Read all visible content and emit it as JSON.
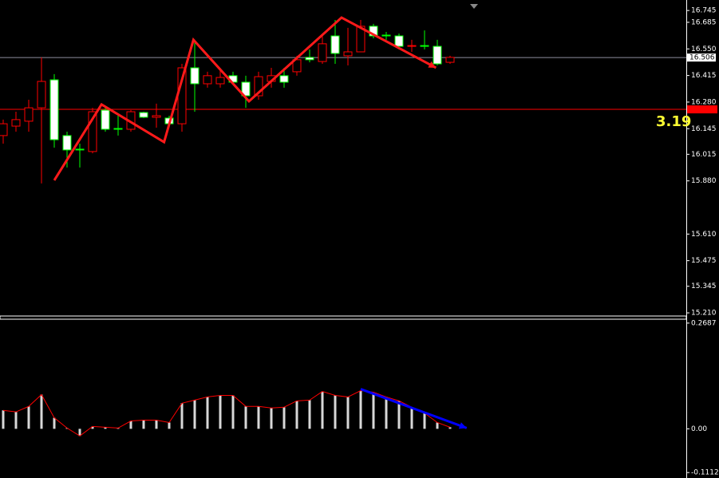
{
  "chart_data": [
    {
      "type": "candlestick",
      "open": [
        16.17,
        16.191,
        16.251,
        16.385,
        16.089,
        16.037,
        16.037,
        16.231,
        16.142,
        16.142,
        16.231,
        16.203,
        16.211,
        16.17,
        16.454,
        16.373,
        16.414,
        16.405,
        16.381,
        16.312,
        16.409,
        16.414,
        16.381,
        16.495,
        16.495,
        16.576,
        16.527,
        16.535,
        16.665,
        16.616,
        16.616,
        16.563,
        16.567,
        16.563,
        16.474,
        16.507
      ],
      "high": [
        16.191,
        16.231,
        16.292,
        16.507,
        16.422,
        16.13,
        16.069,
        16.251,
        16.251,
        16.211,
        16.239,
        16.231,
        16.272,
        16.211,
        16.474,
        16.596,
        16.434,
        16.454,
        16.434,
        16.414,
        16.434,
        16.454,
        16.454,
        16.515,
        16.547,
        16.616,
        16.697,
        16.657,
        16.697,
        16.677,
        16.636,
        16.628,
        16.596,
        16.644,
        16.596,
        16.515
      ],
      "low": [
        16.069,
        16.13,
        16.13,
        15.867,
        16.049,
        15.948,
        15.948,
        16.02,
        16.13,
        16.11,
        16.13,
        16.199,
        16.15,
        16.158,
        16.13,
        16.231,
        16.353,
        16.353,
        16.373,
        16.251,
        16.292,
        16.353,
        16.353,
        16.414,
        16.482,
        16.474,
        16.474,
        16.466,
        16.535,
        16.604,
        16.596,
        16.547,
        16.535,
        16.547,
        16.466,
        16.474
      ],
      "close": [
        16.11,
        16.158,
        16.183,
        16.251,
        16.393,
        16.11,
        16.041,
        16.029,
        16.239,
        16.146,
        16.142,
        16.227,
        16.203,
        16.199,
        16.17,
        16.454,
        16.373,
        16.373,
        16.414,
        16.381,
        16.312,
        16.385,
        16.414,
        16.434,
        16.507,
        16.486,
        16.616,
        16.515,
        16.535,
        16.665,
        16.62,
        16.616,
        16.563,
        16.567,
        16.563,
        16.482
      ],
      "ylim": [
        15.194,
        16.778
      ],
      "yticks": [
        16.685,
        {
          "value": 16.55,
          "label": "16.550"
        },
        16.415,
        {
          "value": 16.28,
          "label": "16.280"
        },
        16.145,
        16.015,
        {
          "value": 15.88,
          "label": "15.880"
        },
        16.745,
        {
          "value": 15.61,
          "label": "15.610"
        },
        15.475,
        15.345,
        {
          "value": 15.21,
          "label": "15.210"
        }
      ],
      "last_price": 16.506,
      "level_line": 16.243,
      "annotation": "3.19",
      "arrows": {
        "x": [
          4,
          7.7,
          12.6,
          14.9,
          19.25,
          26.5,
          33.9
        ],
        "y": [
          15.883,
          16.268,
          16.077,
          16.596,
          16.284,
          16.709,
          16.454
        ],
        "color": "#ff1a1a"
      }
    },
    {
      "type": "bar",
      "values": [
        0.047,
        0.043,
        0.057,
        0.087,
        0.028,
        0.002,
        -0.018,
        0.006,
        0.004,
        0.002,
        0.02,
        0.022,
        0.022,
        0.016,
        0.065,
        0.073,
        0.081,
        0.085,
        0.085,
        0.057,
        0.057,
        0.053,
        0.055,
        0.071,
        0.073,
        0.095,
        0.085,
        0.081,
        0.097,
        0.093,
        0.081,
        0.071,
        0.055,
        0.04,
        0.016,
        0.004
      ],
      "color": "#d8d8d8",
      "ylim": [
        -0.125,
        0.2786
      ],
      "yticks": [
        0.2687,
        {
          "value": 0,
          "label": "0.00"
        },
        -0.1112
      ],
      "arrows": {
        "x": [
          28,
          36.3
        ],
        "y": [
          0.101,
          0.002
        ],
        "color": "#0000ff"
      }
    }
  ]
}
